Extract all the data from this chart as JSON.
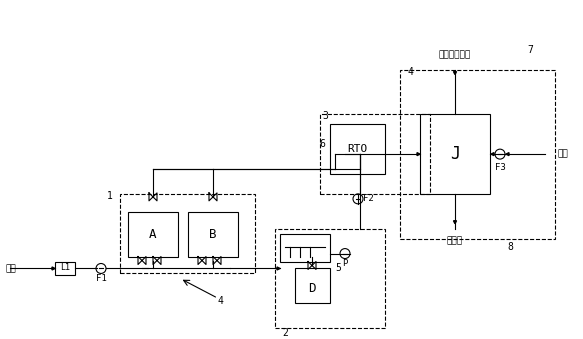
{
  "bg_color": "#ffffff",
  "line_color": "#000000",
  "box_color": "#000000",
  "dashed_color": "#555555",
  "fig_width": 5.83,
  "fig_height": 3.39,
  "title": "",
  "labels": {
    "waste_gas": "废气",
    "L1": "L1",
    "F1": "F1",
    "F2": "F2",
    "F3": "F3",
    "P": "P",
    "D": "D",
    "A": "A",
    "B": "B",
    "RTO": "RTO",
    "J": "J",
    "num1": "1",
    "num2": "2",
    "num3": "3",
    "num4a": "4",
    "num4b": "4",
    "num5": "5",
    "num6": "6",
    "num7": "7",
    "num8": "8",
    "exhaust_label": "废气打标排放",
    "heat_label": "热利用",
    "fresh_air": "新风"
  }
}
